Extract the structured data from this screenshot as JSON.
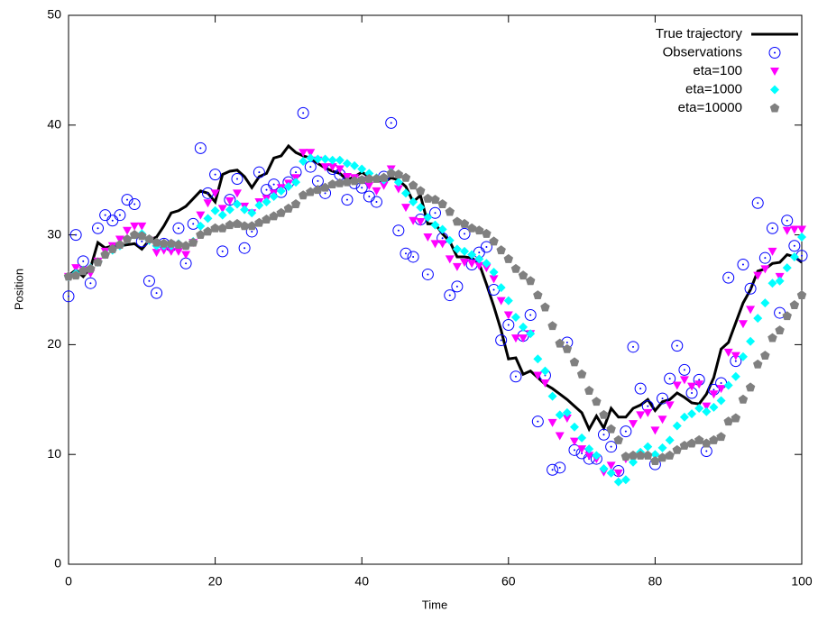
{
  "chart_data": {
    "type": "line",
    "x_label": "Time",
    "y_label": "Position",
    "x": [
      0,
      1,
      2,
      3,
      4,
      5,
      6,
      7,
      8,
      9,
      10,
      11,
      12,
      13,
      14,
      15,
      16,
      17,
      18,
      19,
      20,
      21,
      22,
      23,
      24,
      25,
      26,
      27,
      28,
      29,
      30,
      31,
      32,
      33,
      34,
      35,
      36,
      37,
      38,
      39,
      40,
      41,
      42,
      43,
      44,
      45,
      46,
      47,
      48,
      49,
      50,
      51,
      52,
      53,
      54,
      55,
      56,
      57,
      58,
      59,
      60,
      61,
      62,
      63,
      64,
      65,
      66,
      67,
      68,
      69,
      70,
      71,
      72,
      73,
      74,
      75,
      76,
      77,
      78,
      79,
      80,
      81,
      82,
      83,
      84,
      85,
      86,
      87,
      88,
      89,
      90,
      91,
      92,
      93,
      94,
      95,
      96,
      97,
      98,
      99,
      100
    ],
    "xlim": [
      0,
      100
    ],
    "xticks": [
      0,
      20,
      40,
      60,
      80,
      100
    ],
    "ylim": [
      0,
      50
    ],
    "yticks": [
      0,
      10,
      20,
      30,
      40,
      50
    ],
    "legend": "upper right",
    "series": [
      {
        "name": "True trajectory",
        "color": "#000000",
        "marker": "line",
        "values": [
          26.3,
          26.8,
          26.2,
          27.0,
          29.3,
          28.8,
          29.0,
          29.0,
          29.1,
          29.2,
          28.7,
          29.5,
          29.8,
          30.8,
          32.0,
          32.2,
          32.6,
          33.3,
          34.0,
          33.8,
          33.0,
          35.5,
          35.8,
          35.9,
          35.3,
          34.3,
          35.3,
          35.6,
          37.0,
          37.2,
          38.1,
          37.5,
          37.2,
          37.0,
          36.5,
          36.1,
          35.8,
          35.6,
          35.0,
          35.3,
          35.7,
          35.3,
          35.0,
          34.8,
          35.2,
          35.0,
          34.4,
          33.0,
          33.6,
          31.0,
          31.0,
          30.1,
          29.4,
          28.0,
          28.0,
          27.9,
          27.4,
          25.5,
          23.5,
          21.3,
          18.7,
          18.8,
          17.3,
          17.6,
          17.0,
          16.4,
          16.0,
          15.5,
          15.0,
          14.4,
          13.8,
          12.3,
          13.5,
          12.4,
          14.2,
          13.4,
          13.4,
          14.2,
          14.5,
          15.0,
          14.0,
          14.8,
          15.0,
          15.6,
          15.2,
          14.7,
          14.6,
          15.5,
          17.0,
          19.6,
          20.2,
          22.0,
          23.8,
          25.0,
          26.7,
          26.9,
          27.4,
          27.5,
          28.2,
          28.0,
          27.5
        ]
      },
      {
        "name": "Observations",
        "color": "#0000ff",
        "marker": "circle",
        "values": [
          24.4,
          30.0,
          27.6,
          25.6,
          30.6,
          31.8,
          31.3,
          31.8,
          33.2,
          32.8,
          29.4,
          25.8,
          24.7,
          29.2,
          29.0,
          30.6,
          27.4,
          31.0,
          37.9,
          33.8,
          35.5,
          28.5,
          33.2,
          35.1,
          28.8,
          30.3,
          35.7,
          34.1,
          34.6,
          33.9,
          34.8,
          35.7,
          41.1,
          36.2,
          34.9,
          33.8,
          36.0,
          35.5,
          33.2,
          34.7,
          34.3,
          33.5,
          33.0,
          35.3,
          40.2,
          30.4,
          28.3,
          28.0,
          31.4,
          26.4,
          32.0,
          29.7,
          24.5,
          25.3,
          30.1,
          27.3,
          28.4,
          28.9,
          25.0,
          20.4,
          21.8,
          17.1,
          20.8,
          22.7,
          13.0,
          17.2,
          8.6,
          8.8,
          20.2,
          10.4,
          10.1,
          9.6,
          9.6,
          11.8,
          10.7,
          8.5,
          12.1,
          19.8,
          16.0,
          14.4,
          9.1,
          15.1,
          16.9,
          19.9,
          17.7,
          15.6,
          16.8,
          10.3,
          15.9,
          16.5,
          26.1,
          18.5,
          27.3,
          25.1,
          32.9,
          27.9,
          30.6,
          22.9,
          31.3,
          29.0,
          28.1
        ]
      },
      {
        "name": "eta=100",
        "color": "#ff00ff",
        "marker": "triangle",
        "values": [
          26.2,
          27.0,
          26.8,
          26.5,
          27.6,
          28.5,
          29.0,
          29.6,
          30.4,
          30.8,
          30.8,
          29.5,
          28.4,
          28.6,
          28.5,
          28.5,
          28.2,
          29.3,
          31.8,
          32.9,
          33.8,
          32.4,
          33.1,
          33.8,
          32.6,
          32.0,
          33.0,
          33.3,
          33.8,
          34.3,
          34.7,
          35.2,
          37.5,
          37.5,
          36.8,
          36.2,
          36.2,
          36.0,
          35.3,
          35.2,
          35.0,
          34.5,
          34.0,
          34.5,
          36.0,
          34.2,
          32.5,
          31.3,
          31.2,
          29.8,
          29.2,
          29.2,
          27.8,
          27.1,
          27.5,
          27.4,
          27.2,
          27.0,
          26.0,
          24.0,
          22.7,
          20.6,
          20.6,
          21.0,
          17.2,
          16.5,
          12.9,
          11.7,
          13.3,
          11.2,
          10.5,
          9.9,
          9.6,
          8.4,
          9.0,
          8.3,
          9.6,
          12.8,
          13.6,
          13.8,
          12.2,
          13.2,
          14.5,
          16.3,
          16.8,
          16.2,
          16.4,
          14.4,
          15.5,
          16.0,
          19.3,
          19.0,
          21.9,
          23.2,
          26.3,
          26.9,
          28.5,
          26.2,
          30.4,
          30.5,
          30.5
        ]
      },
      {
        "name": "eta=1000",
        "color": "#00ffff",
        "marker": "diamond",
        "values": [
          26.2,
          26.5,
          26.8,
          27.0,
          27.5,
          28.2,
          28.6,
          29.0,
          29.6,
          30.0,
          30.1,
          29.5,
          29.0,
          29.0,
          29.0,
          29.2,
          29.0,
          29.4,
          30.8,
          31.5,
          32.2,
          31.8,
          32.3,
          32.8,
          32.3,
          32.0,
          32.7,
          33.0,
          33.5,
          34.0,
          34.4,
          34.8,
          36.7,
          37.0,
          36.9,
          36.9,
          36.8,
          36.8,
          36.5,
          36.3,
          36.0,
          35.6,
          35.2,
          35.0,
          35.7,
          34.8,
          33.8,
          33.0,
          32.5,
          31.6,
          30.9,
          30.5,
          29.5,
          28.7,
          28.5,
          28.2,
          27.8,
          27.4,
          26.6,
          25.2,
          24.0,
          22.5,
          21.6,
          21.0,
          18.7,
          17.6,
          15.3,
          13.6,
          13.8,
          12.5,
          11.5,
          10.5,
          9.9,
          8.7,
          8.3,
          7.5,
          7.7,
          9.3,
          10.2,
          10.7,
          10.0,
          10.6,
          11.3,
          12.6,
          13.4,
          13.7,
          14.2,
          13.9,
          14.3,
          14.9,
          16.3,
          17.1,
          18.9,
          20.3,
          22.4,
          23.8,
          25.6,
          25.8,
          27.0,
          28.0,
          29.8
        ]
      },
      {
        "name": "eta=10000",
        "color": "#808080",
        "marker": "pentagon",
        "values": [
          26.2,
          26.3,
          26.7,
          26.9,
          27.5,
          28.2,
          28.7,
          29.1,
          29.6,
          30.0,
          29.9,
          29.6,
          29.3,
          29.2,
          29.2,
          29.1,
          29.0,
          29.3,
          30.0,
          30.3,
          30.6,
          30.6,
          30.9,
          31.0,
          30.8,
          30.8,
          31.1,
          31.4,
          31.7,
          32.0,
          32.4,
          32.8,
          33.6,
          33.9,
          34.1,
          34.3,
          34.6,
          34.7,
          34.8,
          34.9,
          35.0,
          35.1,
          35.1,
          35.2,
          35.6,
          35.5,
          35.2,
          34.5,
          34.0,
          33.3,
          33.2,
          32.8,
          32.1,
          31.2,
          31.0,
          30.6,
          30.4,
          30.1,
          29.4,
          28.6,
          27.8,
          26.9,
          26.3,
          25.8,
          24.5,
          23.4,
          21.7,
          20.1,
          19.6,
          18.4,
          17.3,
          15.8,
          14.8,
          13.6,
          12.3,
          11.3,
          9.8,
          9.9,
          9.9,
          9.9,
          9.4,
          9.7,
          9.9,
          10.4,
          10.8,
          11.0,
          11.3,
          11.0,
          11.3,
          11.6,
          13.0,
          13.3,
          15.0,
          16.1,
          18.2,
          19.0,
          20.6,
          21.3,
          22.6,
          23.6,
          24.5
        ]
      }
    ]
  }
}
